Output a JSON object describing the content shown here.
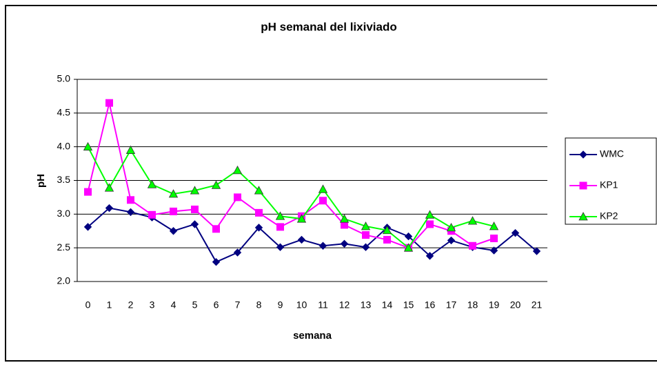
{
  "chart_data": {
    "type": "line",
    "title": "pH semanal del lixiviado",
    "x_label": "semana",
    "y_label": "pH",
    "categories": [
      "0",
      "1",
      "2",
      "3",
      "4",
      "5",
      "6",
      "7",
      "8",
      "9",
      "10",
      "11",
      "12",
      "13",
      "14",
      "15",
      "16",
      "17",
      "18",
      "19",
      "20",
      "21"
    ],
    "series": [
      {
        "name": "WMC",
        "color": "#000080",
        "marker": "diamond",
        "values": [
          2.81,
          3.09,
          3.03,
          2.95,
          2.75,
          2.85,
          2.29,
          2.43,
          2.8,
          2.51,
          2.62,
          2.53,
          2.56,
          2.51,
          2.8,
          2.67,
          2.38,
          2.61,
          2.51,
          2.46,
          2.72,
          2.45
        ]
      },
      {
        "name": "KP1",
        "color": "#ff00ff",
        "marker": "square",
        "values": [
          3.33,
          4.65,
          3.21,
          2.99,
          3.04,
          3.07,
          2.78,
          3.25,
          3.02,
          2.81,
          2.97,
          3.2,
          2.84,
          2.69,
          2.62,
          2.5,
          2.85,
          2.75,
          2.53,
          2.64,
          null,
          null
        ]
      },
      {
        "name": "KP2",
        "color": "#00ff00",
        "marker": "triangle",
        "values": [
          4.0,
          3.39,
          3.95,
          3.44,
          3.3,
          3.35,
          3.43,
          3.65,
          3.35,
          2.97,
          2.93,
          3.37,
          2.93,
          2.82,
          2.76,
          2.5,
          2.99,
          2.8,
          2.9,
          2.82,
          null,
          null
        ]
      }
    ],
    "ylim": [
      2.0,
      5.0
    ],
    "yticks": [
      {
        "value": 2,
        "label": "2.0"
      },
      2.5,
      {
        "value": 3,
        "label": "3.0"
      },
      3.5,
      {
        "value": 4,
        "label": "4.0"
      },
      4.5,
      {
        "value": 5,
        "label": "5.0"
      }
    ],
    "grid": true,
    "legend": "right"
  }
}
